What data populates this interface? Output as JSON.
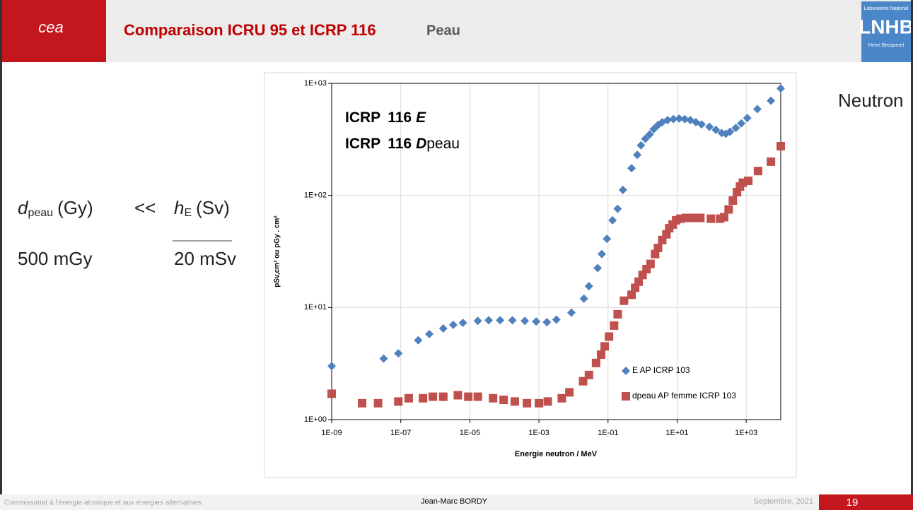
{
  "header": {
    "logo": "cea",
    "title": "Comparaison ICRU 95 et ICRP 116",
    "subtitle": "Peau",
    "lab_logo": "LNHB",
    "lab_top": "Laboratoire National",
    "lab_bottom": "Henri Becquerel"
  },
  "left": {
    "d": "d",
    "d_sub": "peau",
    "d_unit": "(Gy)",
    "op": "<<",
    "h": "h",
    "h_sub": "E",
    "h_unit": "(Sv)",
    "val_left": "500 mGy",
    "val_right": "20 mSv"
  },
  "side_label": "Neutron",
  "footer": {
    "org": "Commissariat à l’énergie atomique et aux énergies alternatives",
    "author": "Jean-Marc BORDY",
    "date": "Septembre, 2021",
    "page": "19"
  },
  "chart_data": {
    "type": "scatter",
    "xscale": "log",
    "yscale": "log",
    "grid": true,
    "legend": "lower right",
    "x_label": "Energie neutron / MeV",
    "y_label": "pSv,cm²  ou  pGy . cm²",
    "annotations": [
      [
        "ICRP",
        "116",
        "E"
      ],
      [
        "ICRP",
        "116",
        "D",
        "peau"
      ]
    ],
    "xlim": [
      1e-09,
      10000
    ],
    "xticks": [
      {
        "value": 1e-09,
        "label": "1E-09"
      },
      {
        "value": 1e-07,
        "label": "1E-07"
      },
      {
        "value": 1e-05,
        "label": "1E-05"
      },
      {
        "value": 0.001,
        "label": "1E-03"
      },
      {
        "value": 0.1,
        "label": "1E-01"
      },
      {
        "value": 10,
        "label": "1E+01"
      },
      {
        "value": 1000,
        "label": "1E+03"
      }
    ],
    "ylim": [
      1,
      1000
    ],
    "yticks": [
      {
        "value": 1,
        "label": "1E+00"
      },
      {
        "value": 10,
        "label": "1E+01"
      },
      {
        "value": 100,
        "label": "1E+02"
      },
      {
        "value": 1000,
        "label": "1E+03"
      }
    ],
    "series": [
      {
        "name": "E AP  ICRP 103",
        "color": "#4f81bd",
        "marker": "diamond",
        "x": [
          1e-09,
          3.2e-08,
          8.5e-08,
          3.2e-07,
          6.7e-07,
          1.7e-06,
          3.3e-06,
          6.3e-06,
          1.7e-05,
          3.5e-05,
          7.5e-05,
          0.00017,
          0.00039,
          0.00083,
          0.0017,
          0.0032,
          0.0087,
          0.02,
          0.028,
          0.05,
          0.066,
          0.093,
          0.135,
          0.19,
          0.27,
          0.48,
          0.7,
          0.9,
          1.2,
          1.6,
          2.1,
          2.8,
          3.7,
          5.3,
          7.8,
          11.5,
          16.7,
          24,
          35,
          51,
          86,
          132,
          195,
          257,
          340,
          500,
          720,
          1070,
          2100,
          5200,
          10000
        ],
        "values": [
          3.0,
          3.5,
          3.9,
          5.1,
          5.8,
          6.5,
          7.0,
          7.3,
          7.6,
          7.7,
          7.7,
          7.7,
          7.6,
          7.5,
          7.4,
          7.8,
          9.0,
          12,
          15.5,
          22.5,
          30,
          41,
          60,
          76,
          112,
          175,
          230,
          280,
          320,
          350,
          390,
          425,
          450,
          470,
          480,
          485,
          480,
          470,
          450,
          430,
          410,
          385,
          360,
          355,
          370,
          400,
          440,
          490,
          590,
          700,
          900
        ]
      },
      {
        "name": "dpeau AP femme ICRP 103",
        "color": "#c0504d",
        "marker": "square",
        "x": [
          1e-09,
          7.6e-09,
          2.2e-08,
          8.5e-08,
          1.7e-07,
          4.4e-07,
          8.5e-07,
          1.7e-06,
          4.5e-06,
          9e-06,
          1.7e-05,
          4.7e-05,
          9.5e-05,
          0.0002,
          0.00045,
          0.001,
          0.0018,
          0.0046,
          0.0076,
          0.019,
          0.028,
          0.045,
          0.063,
          0.08,
          0.107,
          0.15,
          0.19,
          0.29,
          0.48,
          0.61,
          0.77,
          1.0,
          1.3,
          1.7,
          2.3,
          2.8,
          3.7,
          4.9,
          5.9,
          7.4,
          9.4,
          12.5,
          18,
          29,
          47,
          95,
          175,
          230,
          310,
          410,
          540,
          660,
          800,
          1150,
          2200,
          5200,
          10000
        ],
        "values": [
          1.7,
          1.4,
          1.4,
          1.45,
          1.55,
          1.55,
          1.6,
          1.6,
          1.65,
          1.6,
          1.6,
          1.55,
          1.5,
          1.45,
          1.4,
          1.4,
          1.45,
          1.55,
          1.75,
          2.2,
          2.5,
          3.2,
          3.8,
          4.5,
          5.5,
          6.9,
          8.7,
          11.5,
          13,
          15,
          17,
          19.5,
          22,
          24.5,
          30,
          34,
          40,
          45,
          51,
          55,
          60,
          62,
          63,
          63,
          63,
          62,
          62,
          64,
          75,
          90,
          107,
          120,
          130,
          135,
          165,
          200,
          275
        ]
      }
    ]
  }
}
